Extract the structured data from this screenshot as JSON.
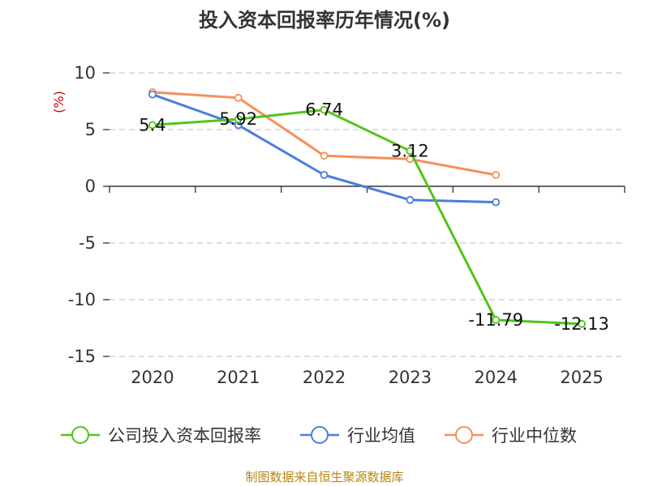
{
  "chart_data": {
    "type": "line",
    "title": "投入资本回报率历年情况(%)",
    "ylabel": "(%)",
    "xlabel": "",
    "categories": [
      "2020",
      "2021",
      "2022",
      "2023",
      "2024",
      "2025"
    ],
    "ylim": [
      -15,
      10
    ],
    "yticks": [
      10,
      5,
      0,
      -5,
      -10,
      -15
    ],
    "grid": true,
    "series": [
      {
        "name": "公司投入资本回报率",
        "color": "#52c41a",
        "values": [
          5.4,
          5.92,
          6.74,
          3.12,
          -11.79,
          -12.13
        ],
        "labels": [
          "5.4",
          "5.92",
          "6.74",
          "3.12",
          "-11.79",
          "-12.13"
        ]
      },
      {
        "name": "行业均值",
        "color": "#4a7fdc",
        "values": [
          8.1,
          5.4,
          1.0,
          -1.2,
          -1.4,
          null
        ]
      },
      {
        "name": "行业中位数",
        "color": "#f5905a",
        "values": [
          8.3,
          7.8,
          2.7,
          2.4,
          1.0,
          null
        ]
      }
    ],
    "legend_position": "bottom"
  },
  "source": "制图数据来自恒生聚源数据库"
}
